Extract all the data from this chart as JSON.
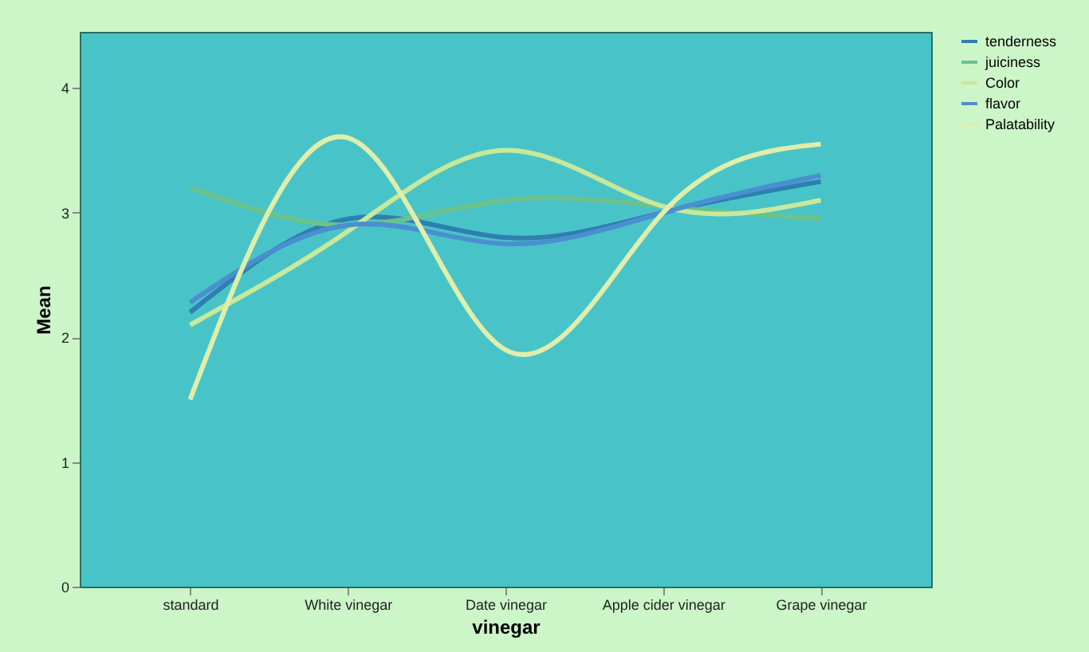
{
  "chart_data": {
    "type": "line",
    "xlabel": "vinegar",
    "ylabel": "Mean",
    "categories": [
      "standard",
      "White vinegar",
      "Date vinegar",
      "Apple cider vinegar",
      "Grape vinegar"
    ],
    "series": [
      {
        "name": "tenderness",
        "color": "#2f7fb0",
        "values": [
          2.2,
          2.95,
          2.8,
          3.0,
          3.25
        ]
      },
      {
        "name": "juiciness",
        "color": "#6cc28c",
        "values": [
          3.2,
          2.9,
          3.1,
          3.05,
          2.95
        ]
      },
      {
        "name": "Color",
        "color": "#c8e89a",
        "values": [
          2.1,
          2.85,
          3.5,
          3.05,
          3.1
        ]
      },
      {
        "name": "flavor",
        "color": "#4a8fd0",
        "values": [
          2.28,
          2.9,
          2.75,
          3.0,
          3.3
        ]
      },
      {
        "name": "Palatability",
        "color": "#e0eeaa",
        "values": [
          1.5,
          3.6,
          1.9,
          3.0,
          3.55
        ]
      }
    ],
    "ylim": [
      0,
      4.45
    ],
    "yticks": [
      0,
      1,
      2,
      3,
      4
    ],
    "grid": false,
    "legend": "top right",
    "line_style": "solid",
    "marker": "none"
  }
}
